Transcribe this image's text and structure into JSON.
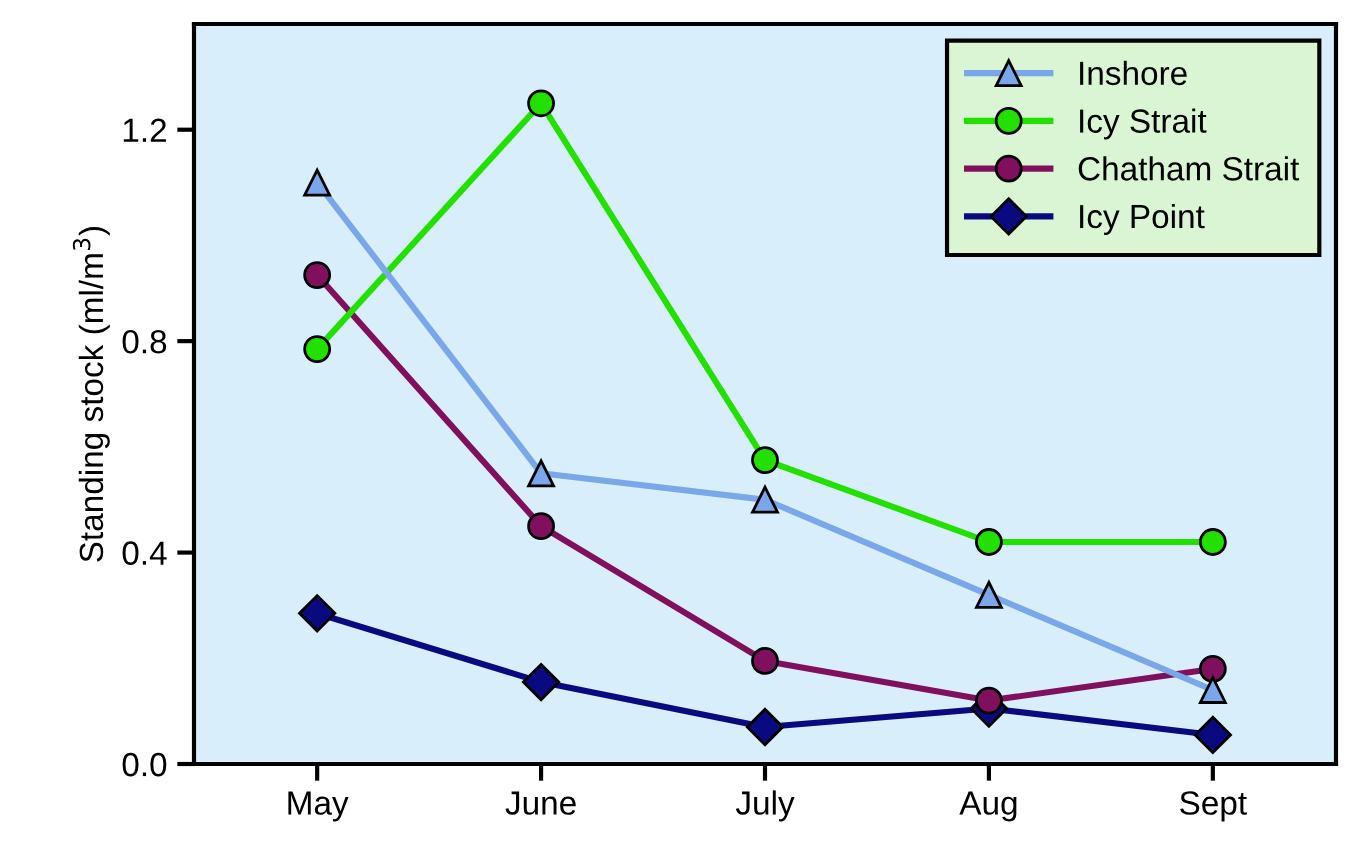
{
  "chart_data": {
    "type": "line",
    "ylabel": "Standing stock (ml/m$^{3}$)",
    "categories": [
      "May",
      "June",
      "July",
      "Aug",
      "Sept"
    ],
    "series": [
      {
        "name": "Inshore",
        "color": "#7aa6ea",
        "marker": "triangle",
        "values": [
          1.1,
          0.55,
          0.5,
          0.32,
          0.14
        ]
      },
      {
        "name": "Icy Strait",
        "color": "#22e000",
        "marker": "circle",
        "values": [
          0.785,
          1.25,
          0.575,
          0.42,
          0.42
        ]
      },
      {
        "name": "Chatham Strait",
        "color": "#80105e",
        "marker": "circle",
        "values": [
          0.925,
          0.45,
          0.195,
          0.12,
          0.18
        ]
      },
      {
        "name": "Icy Point",
        "color": "#0a0a80",
        "marker": "diamond",
        "values": [
          0.285,
          0.155,
          0.07,
          0.105,
          0.055
        ]
      }
    ],
    "ylim": [
      0,
      1.4
    ],
    "yticks": [
      {
        "value": 0,
        "label": "0.0"
      },
      0.4,
      0.8,
      1.2
    ],
    "grid": false,
    "legend": "top right",
    "line_style": "solid"
  }
}
